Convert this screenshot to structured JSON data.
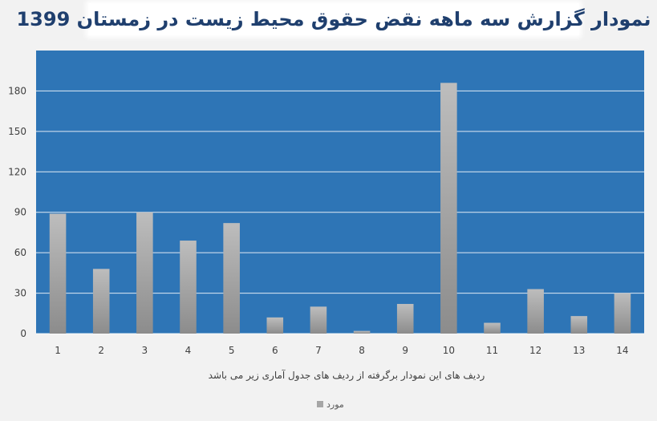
{
  "header": {
    "title": "نمودار گزارش سه ماهه نقض حقوق محیط زیست در زمستان 1399"
  },
  "colors": {
    "plot_background": "#2e75b6",
    "bar_fill": "#a6a6a6",
    "gridline": "#ffffff",
    "page_background": "#f2f2f2"
  },
  "chart_data": {
    "type": "bar",
    "title": "نمودار گزارش سه ماهه نقض حقوق محیط زیست در زمستان 1399",
    "xlabel": "ردیف های این نمودار برگرفته از ردیف های جدول آماری زیر می باشد",
    "ylabel": "",
    "categories": [
      "1",
      "2",
      "3",
      "4",
      "5",
      "6",
      "7",
      "8",
      "9",
      "10",
      "11",
      "12",
      "13",
      "14"
    ],
    "series": [
      {
        "name": "مورد",
        "values": [
          89,
          48,
          90,
          69,
          82,
          12,
          20,
          2,
          22,
          186,
          8,
          33,
          13,
          30
        ]
      }
    ],
    "ylim": [
      0,
      210
    ],
    "yticks": [
      "0",
      "30",
      "60",
      "90",
      "120",
      "150",
      "180"
    ],
    "grid": true,
    "legend_position": "bottom"
  }
}
